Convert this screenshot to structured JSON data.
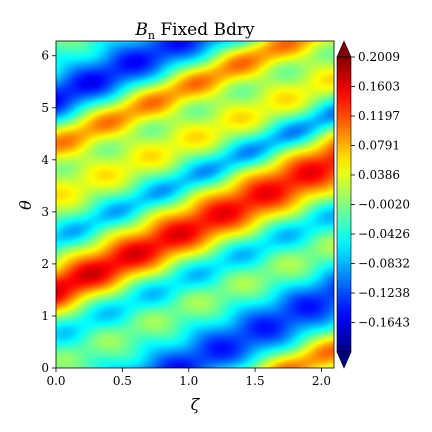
{
  "chart_data": {
    "type": "heatmap",
    "title_symbol": "B",
    "title_subscript": "n",
    "title_text": " Fixed Bdry",
    "xlabel": "ζ",
    "ylabel": "θ",
    "xlim": [
      0,
      2.0944
    ],
    "ylim": [
      0,
      6.2832
    ],
    "x_ticks": [
      0.0,
      0.5,
      1.0,
      1.5,
      2.0
    ],
    "x_tick_labels": [
      "0.0",
      "0.5",
      "1.0",
      "1.5",
      "2.0"
    ],
    "y_ticks": [
      0,
      1,
      2,
      3,
      4,
      5,
      6
    ],
    "y_tick_labels": [
      "0",
      "1",
      "2",
      "3",
      "4",
      "5",
      "6"
    ],
    "colormap": "jet",
    "vmin": -0.2049,
    "vmax": 0.2009,
    "colorbar_extend": "both",
    "colorbar_ticks": [
      0.2009,
      0.1603,
      0.1197,
      0.0791,
      0.0386,
      -0.002,
      -0.0426,
      -0.0832,
      -0.1238,
      -0.1643
    ],
    "colorbar_tick_labels": [
      "0.2009",
      "0.1603",
      "0.1197",
      "0.0791",
      "0.0386",
      "−0.0020",
      "−0.0426",
      "−0.0832",
      "−0.1238",
      "−0.1643"
    ],
    "field_model": {
      "description": "approximate field: helical bands with slope ~1.15 in theta per unit zeta",
      "slope": 1.15,
      "max_center": 1.55,
      "max_amplitude": 0.16,
      "min_center": 5.25,
      "min_amplitude": 0.15,
      "secondary_max_center": 4.25,
      "secondary_max_amplitude": 0.09
    }
  }
}
